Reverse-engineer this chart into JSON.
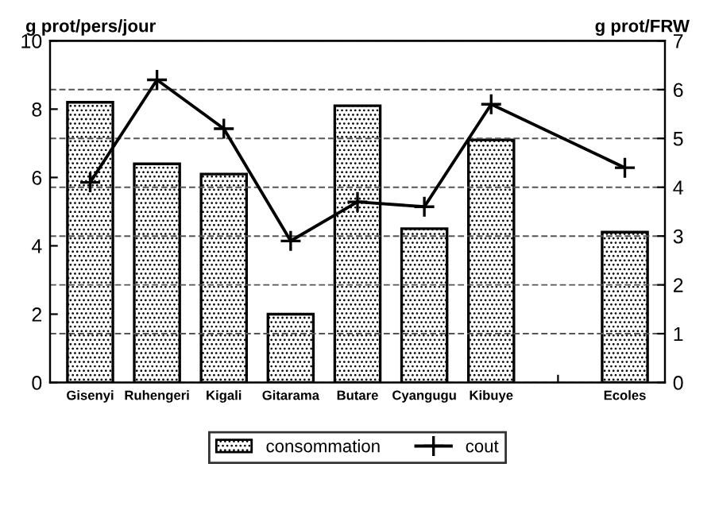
{
  "chart_data": {
    "type": "bar",
    "ylabel": "g prot/pers/jour",
    "y2label": "g prot/FRW",
    "categories": [
      "Gisenyi",
      "Ruhengeri",
      "Kigali",
      "Gitarama",
      "Butare",
      "Cyangugu",
      "Kibuye",
      null,
      "Ecoles"
    ],
    "series": [
      {
        "name": "consommation",
        "color": "#000000",
        "values": [
          8.2,
          6.4,
          6.1,
          2.0,
          8.1,
          4.5,
          7.1,
          null,
          4.4
        ]
      },
      {
        "name": "cout",
        "type": "line",
        "axis": "y2",
        "color": "#000000",
        "marker": "cross",
        "values": [
          4.1,
          6.2,
          5.2,
          2.9,
          3.7,
          3.6,
          5.7,
          null,
          4.4
        ]
      }
    ],
    "ylim": [
      0,
      10
    ],
    "yticks": [
      0,
      2,
      4,
      6,
      8,
      10
    ],
    "y2lim": [
      0,
      7
    ],
    "y2ticks": [
      0,
      1,
      2,
      3,
      4,
      5,
      6,
      7
    ],
    "grid": "y2",
    "legend": "bottom"
  }
}
